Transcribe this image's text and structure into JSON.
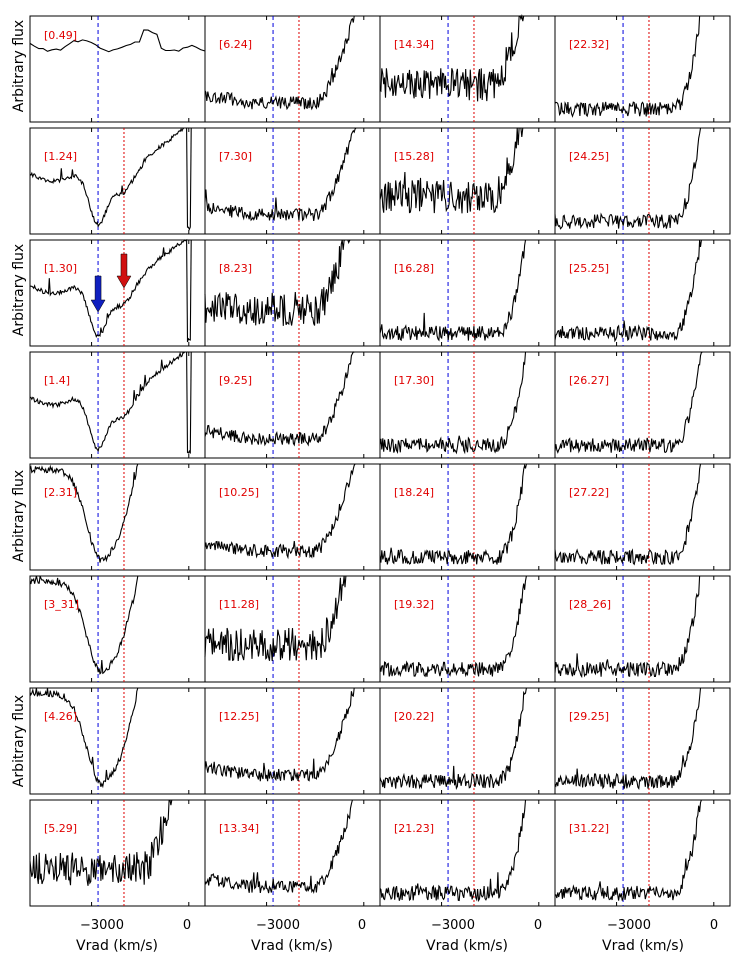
{
  "figure": {
    "ylabel": "Arbitrary flux",
    "xlabel": "Vrad (km/s)",
    "xtick_labels": [
      "−3000",
      "0"
    ]
  },
  "chart_data": {
    "type": "line",
    "xlabel": "Vrad (km/s)",
    "ylabel": "Arbitrary flux",
    "xticks": [
      -3000,
      0
    ],
    "reference_lines": [
      {
        "name": "",
        "x": -2800,
        "color": "#0000dd",
        "style": "dashed"
      },
      {
        "name": "",
        "x": -2000,
        "color": "#dd0000",
        "style": "dotted"
      }
    ],
    "panels": [
      {
        "label": "[0.49]",
        "col": 0,
        "row": 0,
        "kind": "flat"
      },
      {
        "label": "[1.24]",
        "col": 0,
        "row": 1,
        "kind": "early"
      },
      {
        "label": "[1.30]",
        "col": 0,
        "row": 2,
        "kind": "early",
        "arrows": true
      },
      {
        "label": "[1.4]",
        "col": 0,
        "row": 3,
        "kind": "early"
      },
      {
        "label": "[2.31]",
        "col": 0,
        "row": 4,
        "kind": "deep"
      },
      {
        "label": "[3_31]",
        "col": 0,
        "row": 5,
        "kind": "deep"
      },
      {
        "label": "[4.26]",
        "col": 0,
        "row": 6,
        "kind": "deep"
      },
      {
        "label": "[5.29]",
        "col": 0,
        "row": 7,
        "kind": "noisy"
      },
      {
        "label": "[6.24]",
        "col": 1,
        "row": 0,
        "kind": "wide"
      },
      {
        "label": "[7.30]",
        "col": 1,
        "row": 1,
        "kind": "wide"
      },
      {
        "label": "[8.23]",
        "col": 1,
        "row": 2,
        "kind": "noisy"
      },
      {
        "label": "[9.25]",
        "col": 1,
        "row": 3,
        "kind": "wide"
      },
      {
        "label": "[10.25]",
        "col": 1,
        "row": 4,
        "kind": "wide"
      },
      {
        "label": "[11.28]",
        "col": 1,
        "row": 5,
        "kind": "noisy"
      },
      {
        "label": "[12.25]",
        "col": 1,
        "row": 6,
        "kind": "wide"
      },
      {
        "label": "[13.34]",
        "col": 1,
        "row": 7,
        "kind": "wide"
      },
      {
        "label": "[14.34]",
        "col": 2,
        "row": 0,
        "kind": "noisy"
      },
      {
        "label": "[15.28]",
        "col": 2,
        "row": 1,
        "kind": "noisy"
      },
      {
        "label": "[16.28]",
        "col": 2,
        "row": 2,
        "kind": "late"
      },
      {
        "label": "[17.30]",
        "col": 2,
        "row": 3,
        "kind": "late"
      },
      {
        "label": "[18.24]",
        "col": 2,
        "row": 4,
        "kind": "late"
      },
      {
        "label": "[19.32]",
        "col": 2,
        "row": 5,
        "kind": "late"
      },
      {
        "label": "[20.22]",
        "col": 2,
        "row": 6,
        "kind": "late"
      },
      {
        "label": "[21.23]",
        "col": 2,
        "row": 7,
        "kind": "late"
      },
      {
        "label": "[22.32]",
        "col": 3,
        "row": 0,
        "kind": "late"
      },
      {
        "label": "[24.25]",
        "col": 3,
        "row": 1,
        "kind": "late"
      },
      {
        "label": "[25.25]",
        "col": 3,
        "row": 2,
        "kind": "late"
      },
      {
        "label": "[26.27]",
        "col": 3,
        "row": 3,
        "kind": "late"
      },
      {
        "label": "[27.22]",
        "col": 3,
        "row": 4,
        "kind": "late"
      },
      {
        "label": "[28_26]",
        "col": 3,
        "row": 5,
        "kind": "late"
      },
      {
        "label": "[29.25]",
        "col": 3,
        "row": 6,
        "kind": "late"
      },
      {
        "label": "[31.22]",
        "col": 3,
        "row": 7,
        "kind": "late"
      }
    ],
    "colors": {
      "line": "#000000",
      "label": "#e00000",
      "blue_arrow": "#1020c0",
      "red_arrow": "#d01010"
    }
  }
}
